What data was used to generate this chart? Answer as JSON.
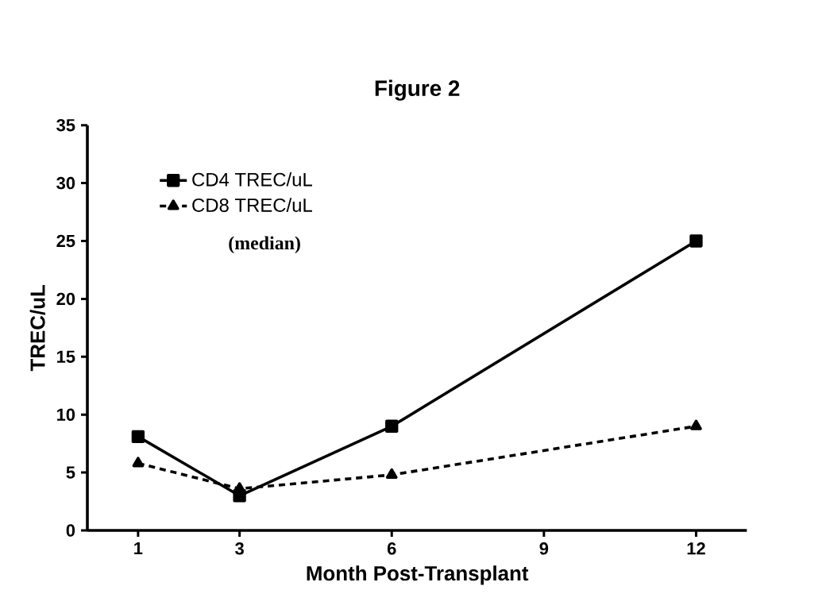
{
  "chart_data": {
    "type": "line",
    "title": "Figure 2",
    "xlabel": "Month Post-Transplant",
    "ylabel": "TREC/uL",
    "x": [
      1,
      3,
      6,
      12
    ],
    "series": [
      {
        "name": "CD4 TREC/uL",
        "color": "#000000",
        "values": [
          8.1,
          3.0,
          9.0,
          25.0
        ],
        "marker": "square",
        "line_style": "solid"
      },
      {
        "name": "CD8 TREC/uL",
        "color": "#000000",
        "values": [
          5.8,
          3.6,
          4.8,
          9.0
        ],
        "marker": "triangle",
        "line_style": "dashed"
      }
    ],
    "xlim": [
      0,
      13
    ],
    "xticks": [
      1,
      3,
      6,
      9,
      12
    ],
    "ylim": [
      0,
      35
    ],
    "yticks": [
      0,
      5,
      10,
      15,
      20,
      25,
      30,
      35
    ],
    "annotations": [
      "(median)"
    ],
    "legend": "top left",
    "grid": false
  }
}
